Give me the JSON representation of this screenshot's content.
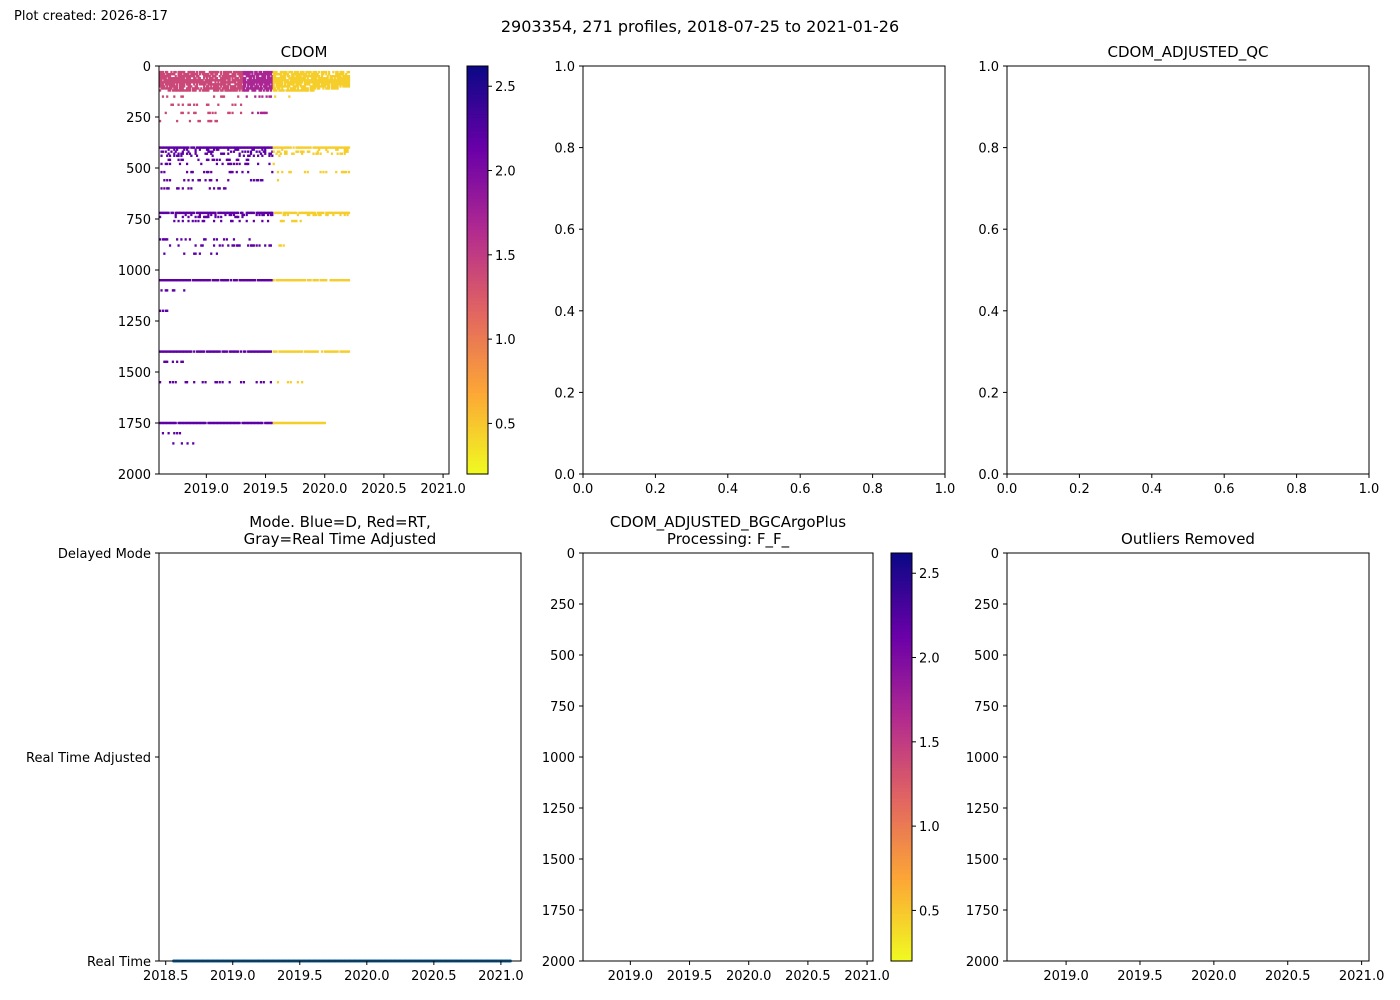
{
  "meta": {
    "plot_created": "Plot created: 2026-8-17",
    "suptitle": "2903354, 271 profiles, 2018-07-25 to 2021-01-26"
  },
  "colors": {
    "plasma": [
      "#f0f921",
      "#fca636",
      "#e16462",
      "#b12a90",
      "#6a00a8",
      "#0d0887"
    ],
    "mode_line": "#1f77b4"
  },
  "chart_data": [
    {
      "id": "cdom",
      "type": "heatmap",
      "title": "CDOM",
      "xlim": [
        2018.6,
        2021.05
      ],
      "ylim": [
        2000,
        0
      ],
      "xticks": [
        2019.0,
        2019.5,
        2020.0,
        2020.5,
        2021.0
      ],
      "xtick_labels": [
        "2019.0",
        "2019.5",
        "2020.0",
        "2020.5",
        "2021.0"
      ],
      "yticks": [
        0,
        250,
        500,
        750,
        1000,
        1250,
        1500,
        1750,
        2000
      ],
      "ytick_labels": [
        "0",
        "250",
        "500",
        "750",
        "1000",
        "1250",
        "1500",
        "1750",
        "2000"
      ],
      "colorbar": {
        "vmin": 0.2,
        "vmax": 2.62,
        "ticks": [
          0.5,
          1.0,
          1.5,
          2.0,
          2.5
        ],
        "tick_labels": [
          "0.5",
          "1.0",
          "1.5",
          "2.0",
          "2.5"
        ]
      },
      "x_extent": [
        2018.6,
        2020.2
      ],
      "sample_depths": [
        30,
        40,
        50,
        60,
        70,
        80,
        90,
        100,
        110,
        120,
        150,
        190,
        230,
        270,
        400,
        410,
        420,
        430,
        440,
        460,
        480,
        520,
        560,
        600,
        720,
        730,
        740,
        760,
        850,
        880,
        920,
        1050,
        1100,
        1200,
        1400,
        1450,
        1550,
        1750,
        1800,
        1850
      ],
      "x_ranges": [
        [
          2018.6,
          2020.2
        ],
        [
          2018.6,
          2020.2
        ],
        [
          2018.6,
          2020.2
        ],
        [
          2018.6,
          2020.2
        ],
        [
          2018.6,
          2020.2
        ],
        [
          2018.6,
          2020.2
        ],
        [
          2018.6,
          2020.2
        ],
        [
          2018.6,
          2020.2
        ],
        [
          2018.6,
          2020.1
        ],
        [
          2018.6,
          2019.9
        ],
        [
          2018.6,
          2019.7
        ],
        [
          2018.6,
          2019.3
        ],
        [
          2018.6,
          2019.5
        ],
        [
          2018.6,
          2019.2
        ],
        [
          2018.6,
          2020.2
        ],
        [
          2018.6,
          2020.2
        ],
        [
          2018.6,
          2020.2
        ],
        [
          2018.6,
          2020.2
        ],
        [
          2018.6,
          2019.7
        ],
        [
          2018.6,
          2019.4
        ],
        [
          2018.6,
          2019.6
        ],
        [
          2018.6,
          2020.2
        ],
        [
          2018.6,
          2019.6
        ],
        [
          2018.6,
          2019.2
        ],
        [
          2018.6,
          2020.2
        ],
        [
          2018.6,
          2020.2
        ],
        [
          2018.6,
          2019.4
        ],
        [
          2018.6,
          2019.8
        ],
        [
          2018.6,
          2019.4
        ],
        [
          2018.6,
          2019.7
        ],
        [
          2018.6,
          2019.1
        ],
        [
          2018.6,
          2020.2
        ],
        [
          2018.6,
          2018.9
        ],
        [
          2018.6,
          2018.7
        ],
        [
          2018.6,
          2020.2
        ],
        [
          2018.6,
          2018.8
        ],
        [
          2018.6,
          2019.8
        ],
        [
          2018.6,
          2020.0
        ],
        [
          2018.6,
          2018.8
        ],
        [
          2018.7,
          2018.9
        ]
      ],
      "dense_bands": [
        75,
        400,
        720,
        1050,
        1400,
        1750
      ],
      "value_by_time": [
        {
          "x": [
            2018.6,
            2019.3
          ],
          "value": 1.4
        },
        {
          "x": [
            2019.3,
            2019.55
          ],
          "value": 1.7
        },
        {
          "x": [
            2019.55,
            2020.2
          ],
          "value": 0.45
        }
      ],
      "deep_value": 2.2
    },
    {
      "id": "cdom_adjusted_qc",
      "type": "empty",
      "title": "",
      "xlim": [
        0,
        1
      ],
      "ylim": [
        0,
        1
      ],
      "xticks": [
        0.0,
        0.2,
        0.4,
        0.6,
        0.8,
        1.0
      ],
      "xtick_labels": [
        "0.0",
        "0.2",
        "0.4",
        "0.6",
        "0.8",
        "1.0"
      ],
      "yticks": [
        0.0,
        0.2,
        0.4,
        0.6,
        0.8,
        1.0
      ],
      "ytick_labels": [
        "0.0",
        "0.2",
        "0.4",
        "0.6",
        "0.8",
        "1.0"
      ]
    },
    {
      "id": "cdom_adjusted_qc_2",
      "type": "empty",
      "title": "CDOM_ADJUSTED_QC",
      "xlim": [
        0,
        1
      ],
      "ylim": [
        0,
        1
      ],
      "xticks": [
        0.0,
        0.2,
        0.4,
        0.6,
        0.8,
        1.0
      ],
      "xtick_labels": [
        "0.0",
        "0.2",
        "0.4",
        "0.6",
        "0.8",
        "1.0"
      ],
      "yticks": [
        0.0,
        0.2,
        0.4,
        0.6,
        0.8,
        1.0
      ],
      "ytick_labels": [
        "0.0",
        "0.2",
        "0.4",
        "0.6",
        "0.8",
        "1.0"
      ]
    },
    {
      "id": "mode",
      "type": "scatter",
      "title_lines": [
        "Mode. Blue=D, Red=RT,",
        "Gray=Real Time Adjusted"
      ],
      "xlim": [
        2018.45,
        2021.15
      ],
      "ylim": [
        0,
        2
      ],
      "xticks": [
        2018.5,
        2019.0,
        2019.5,
        2020.0,
        2020.5,
        2021.0
      ],
      "xtick_labels": [
        "2018.5",
        "2019.0",
        "2019.5",
        "2020.0",
        "2020.5",
        "2021.0"
      ],
      "yticks": [
        2,
        1,
        0
      ],
      "ytick_labels": [
        "Delayed Mode",
        "Real Time Adjusted",
        "Real Time"
      ],
      "x_range": [
        2018.56,
        2021.07
      ],
      "profile_count": 271,
      "y_value": 0
    },
    {
      "id": "cdom_adjusted_bgcargoplus",
      "type": "heatmap",
      "title_lines": [
        "CDOM_ADJUSTED_BGCArgoPlus",
        "Processing: F_F_"
      ],
      "xlim": [
        2018.6,
        2021.05
      ],
      "ylim": [
        2000,
        0
      ],
      "xticks": [
        2019.0,
        2019.5,
        2020.0,
        2020.5,
        2021.0
      ],
      "xtick_labels": [
        "2019.0",
        "2019.5",
        "2020.0",
        "2020.5",
        "2021.0"
      ],
      "yticks": [
        0,
        250,
        500,
        750,
        1000,
        1250,
        1500,
        1750,
        2000
      ],
      "ytick_labels": [
        "0",
        "250",
        "500",
        "750",
        "1000",
        "1250",
        "1500",
        "1750",
        "2000"
      ],
      "colorbar": {
        "vmin": 0.2,
        "vmax": 2.62,
        "ticks": [
          0.5,
          1.0,
          1.5,
          2.0,
          2.5
        ],
        "tick_labels": [
          "0.5",
          "1.0",
          "1.5",
          "2.0",
          "2.5"
        ]
      }
    },
    {
      "id": "outliers_removed",
      "type": "heatmap",
      "title": "Outliers Removed",
      "xlim": [
        2018.6,
        2021.05
      ],
      "ylim": [
        2000,
        0
      ],
      "xticks": [
        2019.0,
        2019.5,
        2020.0,
        2020.5,
        2021.0
      ],
      "xtick_labels": [
        "2019.0",
        "2019.5",
        "2020.0",
        "2020.5",
        "2021.0"
      ],
      "yticks": [
        0,
        250,
        500,
        750,
        1000,
        1250,
        1500,
        1750,
        2000
      ],
      "ytick_labels": [
        "0",
        "250",
        "500",
        "750",
        "1000",
        "1250",
        "1500",
        "1750",
        "2000"
      ]
    }
  ]
}
